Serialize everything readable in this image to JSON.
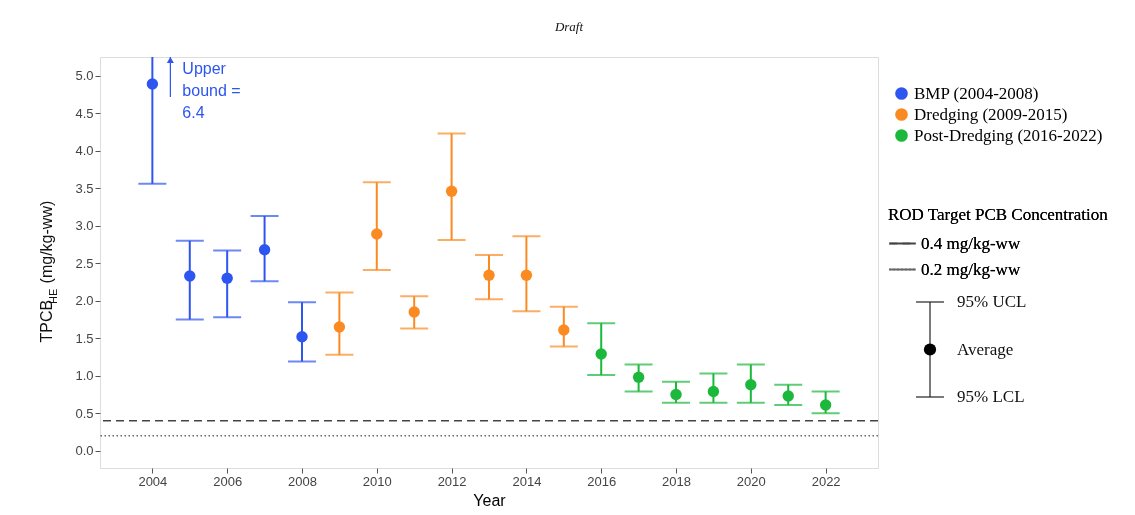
{
  "chart_data": {
    "type": "scatter",
    "title": "Draft",
    "xlabel": "Year",
    "ylabel": "TPCB$_{HE}$ (mg/kg-ww)",
    "legend_title": "ROD Target PCB Concentration",
    "marker": "circle",
    "legend": "right",
    "grid": false,
    "xlim": [
      2002.6,
      2023.4
    ],
    "xticks": [
      2004,
      2006,
      2008,
      2010,
      2012,
      2014,
      2016,
      2018,
      2020,
      2022
    ],
    "ylim": [
      -0.23,
      5.25
    ],
    "yticks": [
      {
        "value": 0,
        "label": "0.0"
      },
      0.5,
      {
        "value": 1,
        "label": "1.0"
      },
      1.5,
      {
        "value": 2,
        "label": "2.0"
      },
      2.5,
      {
        "value": 3,
        "label": "3.0"
      },
      3.5,
      {
        "value": 4,
        "label": "4.0"
      },
      4.5,
      {
        "value": 5,
        "label": "5.0"
      }
    ],
    "series": [
      {
        "name": "BMP (2004-2008)",
        "color": "#2d55f0",
        "x": [
          2004,
          2005,
          2006,
          2007,
          2008
        ],
        "values": [
          4.89,
          2.33,
          2.3,
          2.68,
          1.52
        ],
        "errors": [
          [
            3.56,
            5.25
          ],
          [
            1.75,
            2.8
          ],
          [
            1.78,
            2.67
          ],
          [
            2.26,
            3.13
          ],
          [
            1.19,
            1.98
          ]
        ]
      },
      {
        "name": "Dredging (2009-2015)",
        "color": "#fb8a22",
        "x": [
          2009,
          2010,
          2011,
          2012,
          2013,
          2014,
          2015
        ],
        "values": [
          1.65,
          2.89,
          1.85,
          3.46,
          2.34,
          2.34,
          1.61
        ],
        "errors": [
          [
            1.28,
            2.11
          ],
          [
            2.41,
            3.58
          ],
          [
            1.63,
            2.06
          ],
          [
            2.81,
            4.23
          ],
          [
            2.02,
            2.61
          ],
          [
            1.86,
            2.86
          ],
          [
            1.39,
            1.92
          ]
        ]
      },
      {
        "name": "Post-Dredging (2016-2022)",
        "color": "#1cb83c",
        "x": [
          2016,
          2017,
          2018,
          2019,
          2020,
          2021,
          2022
        ],
        "values": [
          1.29,
          0.98,
          0.75,
          0.79,
          0.88,
          0.73,
          0.61
        ],
        "errors": [
          [
            1.01,
            1.7
          ],
          [
            0.79,
            1.15
          ],
          [
            0.64,
            0.92
          ],
          [
            0.64,
            1.03
          ],
          [
            0.64,
            1.15
          ],
          [
            0.61,
            0.88
          ],
          [
            0.5,
            0.79
          ]
        ]
      }
    ],
    "ref_lines": [
      {
        "axis": "y",
        "value": 0.4,
        "label": "0.4 mg/kg-ww",
        "line_style": "dashed",
        "color": "#444444"
      },
      {
        "axis": "y",
        "value": 0.2,
        "label": "0.2 mg/kg-ww",
        "line_style": "dotted",
        "color": "#666666"
      }
    ],
    "annotations": [
      {
        "text": "Upper\nbound =\n6.4",
        "x": 2004,
        "y": 5.25
      },
      "95% UCL",
      "Average",
      "95% LCL"
    ]
  }
}
